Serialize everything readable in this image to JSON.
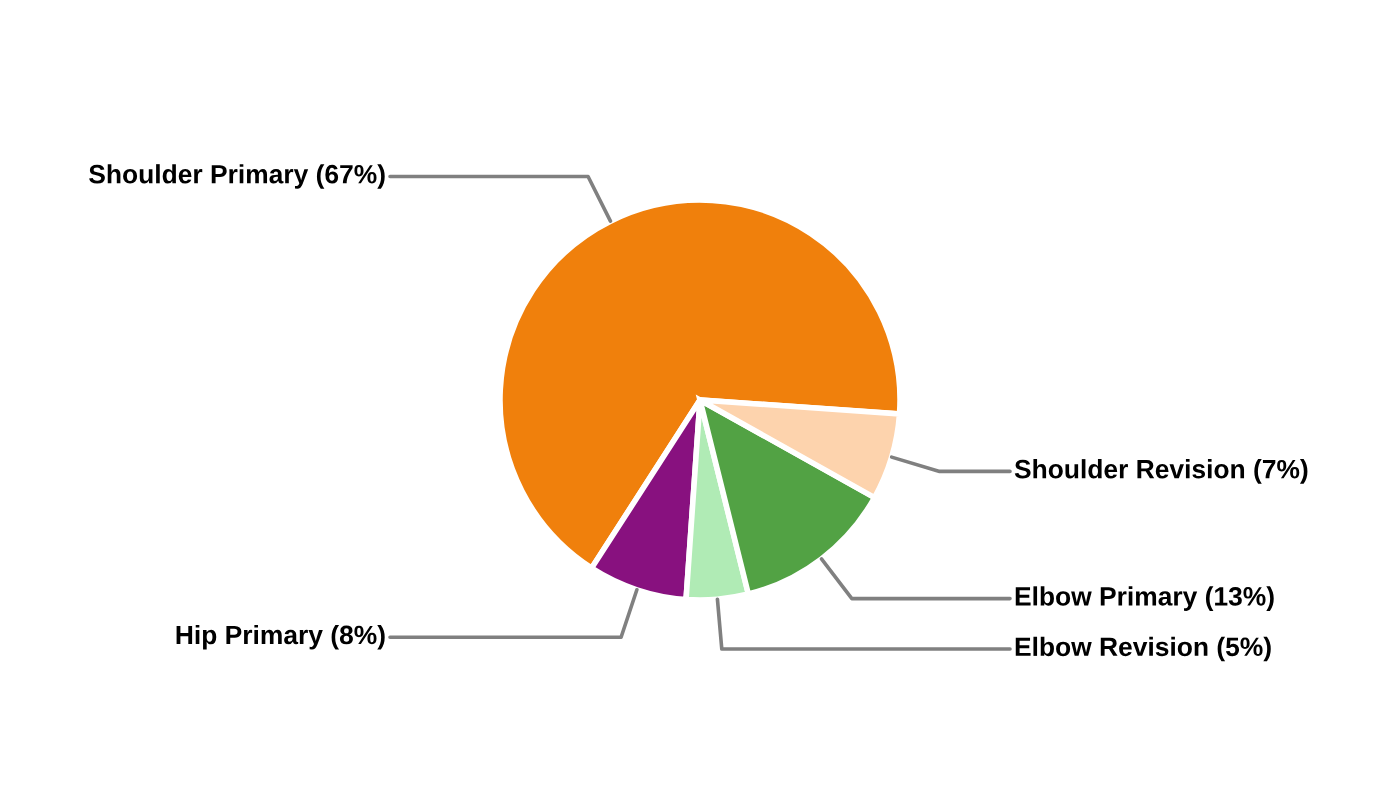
{
  "chart_data": {
    "type": "pie",
    "categories": [
      "Shoulder Primary (67%)",
      "Hip Primary (8%)",
      "Elbow Revision (5%)",
      "Elbow Primary (13%)",
      "Shoulder Revision (7%)"
    ],
    "values": [
      67,
      8,
      5,
      13,
      7
    ],
    "colors": [
      "#f0800c",
      "#88117f",
      "#b0ebb5",
      "#52a244",
      "#fdd3ad"
    ],
    "legend": false
  }
}
